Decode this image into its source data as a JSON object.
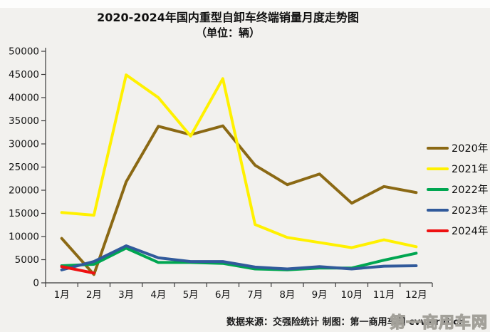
{
  "title": "2020-2024年国内重型自卸车终端销量月度走势图",
  "subtitle": "（单位：辆）",
  "footer": {
    "note": "数据来源：交强险统计  制图：第一商用车网 cvworld.cn",
    "watermark": "第一商用车网"
  },
  "chart_data": {
    "type": "line",
    "title": "2020-2024年国内重型自卸车终端销量月度走势图",
    "unit": "辆",
    "categories": [
      "1月",
      "2月",
      "3月",
      "4月",
      "5月",
      "6月",
      "7月",
      "8月",
      "9月",
      "10月",
      "11月",
      "12月"
    ],
    "ylim": [
      0,
      50000
    ],
    "ytick_step": 5000,
    "grid": false,
    "legend_position": "right",
    "axis_color": "#3a3a3a",
    "series": [
      {
        "name": "2020年",
        "color": "#8B6914",
        "values": [
          9600,
          1800,
          21800,
          33800,
          32000,
          33900,
          25400,
          21200,
          23500,
          17200,
          20800,
          19500
        ]
      },
      {
        "name": "2021年",
        "color": "#FFF100",
        "values": [
          15200,
          14600,
          44900,
          40000,
          31700,
          44100,
          12600,
          9800,
          8700,
          7600,
          9300,
          7800
        ]
      },
      {
        "name": "2022年",
        "color": "#00A651",
        "values": [
          3700,
          4000,
          7500,
          4400,
          4400,
          4200,
          3000,
          2800,
          3200,
          3200,
          4900,
          6400
        ]
      },
      {
        "name": "2023年",
        "color": "#315A9B",
        "values": [
          2800,
          4600,
          8000,
          5400,
          4600,
          4600,
          3400,
          3000,
          3500,
          3000,
          3600,
          3700
        ]
      },
      {
        "name": "2024年",
        "color": "#EE1111",
        "values": [
          3500,
          2100
        ]
      }
    ]
  }
}
